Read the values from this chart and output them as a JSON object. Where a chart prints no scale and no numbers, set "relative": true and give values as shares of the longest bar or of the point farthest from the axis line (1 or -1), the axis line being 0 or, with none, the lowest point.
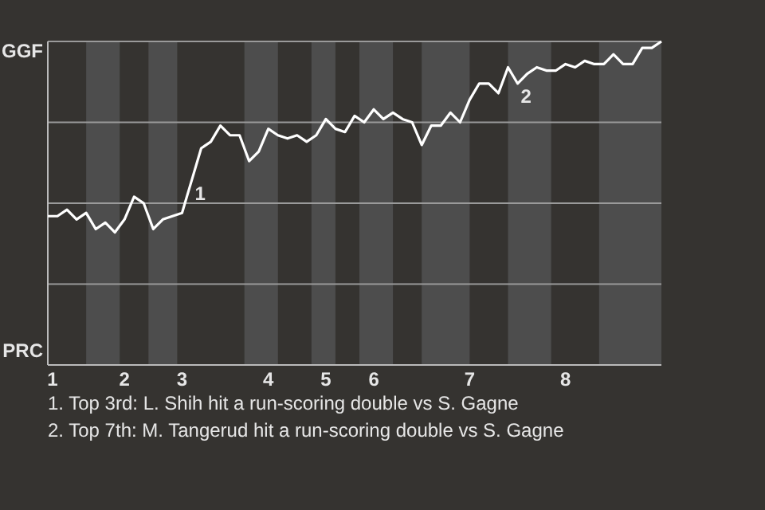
{
  "chart_data": {
    "type": "line",
    "relative": true,
    "categories": [
      "1",
      null,
      null,
      null,
      null,
      null,
      null,
      null,
      "2",
      null,
      null,
      null,
      null,
      null,
      "3",
      null,
      null,
      null,
      null,
      null,
      null,
      null,
      null,
      "4",
      null,
      null,
      null,
      null,
      null,
      "5",
      null,
      null,
      null,
      null,
      "6",
      null,
      null,
      null,
      null,
      null,
      null,
      null,
      null,
      null,
      "7",
      null,
      null,
      null,
      null,
      null,
      null,
      null,
      null,
      null,
      "8",
      null,
      null,
      null,
      null,
      null,
      null,
      null,
      null,
      null,
      null
    ],
    "series": [
      {
        "color": "#ffffff",
        "values": [
          0.46,
          0.46,
          0.48,
          0.45,
          0.47,
          0.42,
          0.44,
          0.41,
          0.45,
          0.52,
          0.5,
          0.42,
          0.45,
          0.46,
          0.47,
          0.57,
          0.67,
          0.69,
          0.74,
          0.71,
          0.71,
          0.63,
          0.66,
          0.73,
          0.71,
          0.7,
          0.71,
          0.69,
          0.71,
          0.76,
          0.73,
          0.72,
          0.77,
          0.75,
          0.79,
          0.76,
          0.78,
          0.76,
          0.75,
          0.68,
          0.74,
          0.74,
          0.78,
          0.75,
          0.82,
          0.87,
          0.87,
          0.84,
          0.92,
          0.87,
          0.9,
          0.92,
          0.91,
          0.91,
          0.93,
          0.92,
          0.94,
          0.93,
          0.93,
          0.96,
          0.93,
          0.93,
          0.98,
          0.98,
          1
        ]
      }
    ],
    "legend": false,
    "marker": "none",
    "line_style": "solid",
    "ref_lines": [
      {
        "axis": "y",
        "value": 0.25,
        "color": "#9a9a9a"
      },
      {
        "axis": "y",
        "value": 0.5,
        "color": "#9a9a9a"
      },
      {
        "axis": "y",
        "value": 0.75,
        "color": "#9a9a9a"
      },
      {
        "axis": "y",
        "value": 1,
        "color": "#9a9a9a"
      }
    ],
    "annotations": [
      "GGF",
      "PRC",
      {
        "text": "1",
        "y": 0.57
      },
      {
        "text": "2",
        "y": 0.87
      },
      "1. Top 3rd: L. Shih hit a run-scoring double vs S. Gagne",
      "2. Top 7th: M. Tangerud hit a run-scoring double vs S. Gagne"
    ]
  }
}
